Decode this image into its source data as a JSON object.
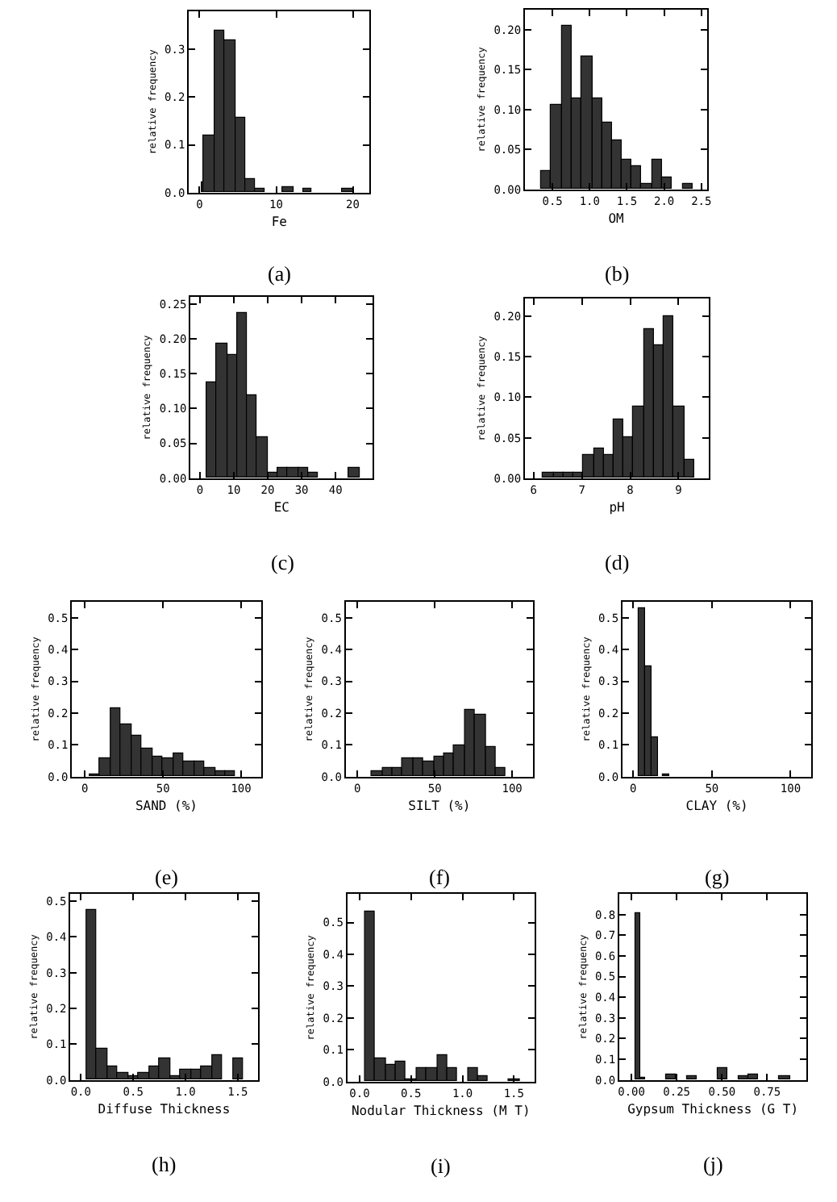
{
  "chart_data": [
    {
      "type": "histogram",
      "xlabel": "Fe",
      "ylabel": "relative frequency",
      "annotations": [
        "(a)"
      ],
      "color": "#333333",
      "bins": [
        0.2,
        0.5,
        1.9,
        3.3,
        4.7,
        5.9,
        7.2,
        8.4,
        10.9,
        12.2,
        13.5,
        14.7,
        18.6,
        20.0
      ],
      "values": [
        0.02,
        0.12,
        0.34,
        0.318,
        0.156,
        0.029,
        0.007,
        0,
        0.013,
        0,
        0.007,
        0,
        0.007
      ],
      "xlim": [
        -1.4,
        22.2
      ],
      "ylim": [
        0,
        0.38
      ],
      "xticks": [
        0,
        10,
        20
      ],
      "yticks": [
        {
          "value": 0,
          "label": "0.0"
        },
        0.1,
        0.2,
        0.3
      ]
    },
    {
      "type": "histogram",
      "xlabel": "OM",
      "ylabel": "relative frequency",
      "annotations": [
        "(b)"
      ],
      "color": "#333333",
      "bins": [
        0.35,
        0.48,
        0.62,
        0.75,
        0.89,
        1.03,
        1.16,
        1.3,
        1.43,
        1.57,
        1.7,
        1.84,
        1.98,
        2.11,
        2.25,
        2.38
      ],
      "values": [
        0.023,
        0.105,
        0.205,
        0.113,
        0.167,
        0.113,
        0.083,
        0.061,
        0.037,
        0.03,
        0.007,
        0.037,
        0.015,
        0,
        0.007
      ],
      "xlim": [
        0.13,
        2.58
      ],
      "ylim": [
        0,
        0.225
      ],
      "xticks": [
        0.5,
        {
          "value": 1,
          "label": "1.0"
        },
        1.5,
        {
          "value": 2,
          "label": "2.0"
        },
        2.5
      ],
      "yticks": [
        {
          "value": 0,
          "label": "0.00"
        },
        0.05,
        {
          "value": 0.1,
          "label": "0.10"
        },
        0.15,
        {
          "value": 0.2,
          "label": "0.20"
        }
      ]
    },
    {
      "type": "histogram",
      "xlabel": "EC",
      "ylabel": "relative frequency",
      "annotations": [
        "(c)"
      ],
      "color": "#333333",
      "bins": [
        1.9,
        4.9,
        7.9,
        10.9,
        13.9,
        16.9,
        19.9,
        22.9,
        25.9,
        28.9,
        31.9,
        34.9,
        43.9,
        46.9
      ],
      "values": [
        0.138,
        0.192,
        0.176,
        0.236,
        0.118,
        0.058,
        0.008,
        0.014,
        0.014,
        0.014,
        0.008,
        0,
        0.014
      ],
      "xlim": [
        -2.8,
        51
      ],
      "ylim": [
        0,
        0.26
      ],
      "xticks": [
        0,
        10,
        20,
        30,
        40
      ],
      "yticks": [
        {
          "value": 0,
          "label": "0.00"
        },
        0.05,
        {
          "value": 0.1,
          "label": "0.10"
        },
        0.15,
        {
          "value": 0.2,
          "label": "0.20"
        },
        0.25
      ]
    },
    {
      "type": "histogram",
      "xlabel": "pH",
      "ylabel": "relative frequency",
      "annotations": [
        "(d)"
      ],
      "color": "#333333",
      "bins": [
        6.2,
        6.41,
        6.62,
        6.82,
        7.03,
        7.24,
        7.45,
        7.66,
        7.86,
        8.07,
        8.28,
        8.49,
        8.7,
        8.9,
        9.11,
        9.32
      ],
      "values": [
        0.006,
        0.006,
        0.006,
        0.006,
        0.029,
        0.037,
        0.029,
        0.073,
        0.051,
        0.089,
        0.185,
        0.164,
        0.2,
        0.089,
        0.022
      ],
      "xlim": [
        5.82,
        9.63
      ],
      "ylim": [
        0,
        0.222
      ],
      "xticks": [
        6,
        7,
        8,
        9
      ],
      "yticks": [
        {
          "value": 0,
          "label": "0.00"
        },
        0.05,
        {
          "value": 0.1,
          "label": "0.10"
        },
        0.15,
        {
          "value": 0.2,
          "label": "0.20"
        }
      ]
    },
    {
      "type": "histogram",
      "xlabel": "SAND (%)",
      "ylabel": "relative frequency",
      "annotations": [
        "(e)"
      ],
      "color": "#333333",
      "bins": [
        2.7,
        9.4,
        16.1,
        22.8,
        29.5,
        36.2,
        42.9,
        49.6,
        56.3,
        63.0,
        69.7,
        76.4,
        83.1,
        89.8,
        96.5
      ],
      "values": [
        0.007,
        0.057,
        0.213,
        0.167,
        0.127,
        0.087,
        0.062,
        0.057,
        0.071,
        0.047,
        0.047,
        0.025,
        0.017,
        0.017
      ],
      "xlim": [
        -8.2,
        112.6
      ],
      "ylim": [
        0,
        0.55
      ],
      "xticks": [
        0,
        50,
        100
      ],
      "yticks": [
        {
          "value": 0,
          "label": "0.0"
        },
        0.1,
        0.2,
        0.3,
        0.4,
        0.5
      ]
    },
    {
      "type": "histogram",
      "xlabel": "SILT (%)",
      "ylabel": "relative frequency",
      "annotations": [
        "(f)"
      ],
      "color": "#333333",
      "bins": [
        9.3,
        16.0,
        22.6,
        29.3,
        36.0,
        42.6,
        49.3,
        56.0,
        62.7,
        69.3,
        76.0,
        82.7,
        89.3,
        96.0
      ],
      "values": [
        0.017,
        0.03,
        0.03,
        0.056,
        0.056,
        0.046,
        0.062,
        0.073,
        0.101,
        0.208,
        0.193,
        0.095,
        0.025
      ],
      "xlim": [
        -7.6,
        113.4
      ],
      "ylim": [
        0,
        0.55
      ],
      "xticks": [
        0,
        50,
        100
      ],
      "yticks": [
        {
          "value": 0,
          "label": "0.0"
        },
        0.1,
        0.2,
        0.3,
        0.4,
        0.5
      ]
    },
    {
      "type": "histogram",
      "xlabel": "CLAY (%)",
      "ylabel": "relative frequency",
      "annotations": [
        "(g)"
      ],
      "color": "#333333",
      "bins": [
        3.1,
        7.1,
        11.2,
        15.3,
        19.3,
        23.4
      ],
      "values": [
        0.53,
        0.345,
        0.122,
        0,
        0.007
      ],
      "xlim": [
        -6.8,
        113.2
      ],
      "ylim": [
        0,
        0.55
      ],
      "xticks": [
        0,
        50,
        100
      ],
      "yticks": [
        {
          "value": 0,
          "label": "0.0"
        },
        0.1,
        0.2,
        0.3,
        0.4,
        0.5
      ]
    },
    {
      "type": "histogram",
      "xlabel": "Diffuse Thickness",
      "ylabel": "relative frequency",
      "annotations": [
        "(h)"
      ],
      "color": "#333333",
      "bins": [
        0.05,
        0.15,
        0.25,
        0.35,
        0.45,
        0.55,
        0.65,
        0.75,
        0.85,
        0.95,
        1.05,
        1.15,
        1.25,
        1.35,
        1.45,
        1.55
      ],
      "values": [
        0.473,
        0.088,
        0.038,
        0.02,
        0.011,
        0.02,
        0.038,
        0.06,
        0.011,
        0.029,
        0.029,
        0.038,
        0.069,
        0,
        0.06
      ],
      "xlim": [
        -0.1,
        1.69
      ],
      "ylim": [
        0,
        0.52
      ],
      "xticks": [
        {
          "value": 0,
          "label": "0.0"
        },
        0.5,
        {
          "value": 1,
          "label": "1.0"
        },
        1.5
      ],
      "yticks": [
        {
          "value": 0,
          "label": "0.0"
        },
        0.1,
        0.2,
        0.3,
        0.4,
        0.5
      ]
    },
    {
      "type": "histogram",
      "xlabel": "Nodular Thickness (M T)",
      "ylabel": "relative frequency",
      "annotations": [
        "(i)"
      ],
      "color": "#333333",
      "bins": [
        0.05,
        0.15,
        0.25,
        0.35,
        0.45,
        0.55,
        0.65,
        0.75,
        0.85,
        0.95,
        1.05,
        1.15,
        1.25,
        1.45,
        1.55
      ],
      "values": [
        0.532,
        0.074,
        0.054,
        0.064,
        0.008,
        0.044,
        0.044,
        0.084,
        0.044,
        0,
        0.044,
        0.018,
        0,
        0.008
      ],
      "xlim": [
        -0.12,
        1.7
      ],
      "ylim": [
        0,
        0.59
      ],
      "xticks": [
        {
          "value": 0,
          "label": "0.0"
        },
        0.5,
        {
          "value": 1,
          "label": "1.0"
        },
        1.5
      ],
      "yticks": [
        {
          "value": 0,
          "label": "0.0"
        },
        0.1,
        0.2,
        0.3,
        0.4,
        0.5
      ]
    },
    {
      "type": "histogram",
      "xlabel": "Gypsum Thickness (G T)",
      "ylabel": "relative frequency",
      "annotations": [
        "(j)"
      ],
      "color": "#333333",
      "bins": [
        0.018,
        0.053,
        0.075,
        0.189,
        0.246,
        0.303,
        0.361,
        0.475,
        0.532,
        0.589,
        0.646,
        0.704,
        0.818,
        0.875
      ],
      "values": [
        0.808,
        0.013,
        0,
        0.023,
        0,
        0.018,
        0,
        0.057,
        0,
        0.018,
        0.023,
        0,
        0.018
      ],
      "xlim": [
        -0.067,
        0.968
      ],
      "ylim": [
        0,
        0.9
      ],
      "xticks": [
        {
          "value": 0,
          "label": "0.00"
        },
        0.25,
        {
          "value": 0.5,
          "label": "0.50"
        },
        0.75
      ],
      "yticks": [
        {
          "value": 0,
          "label": "0.0"
        },
        0.1,
        0.2,
        0.3,
        0.4,
        0.5,
        0.6,
        0.7,
        0.8
      ]
    }
  ]
}
